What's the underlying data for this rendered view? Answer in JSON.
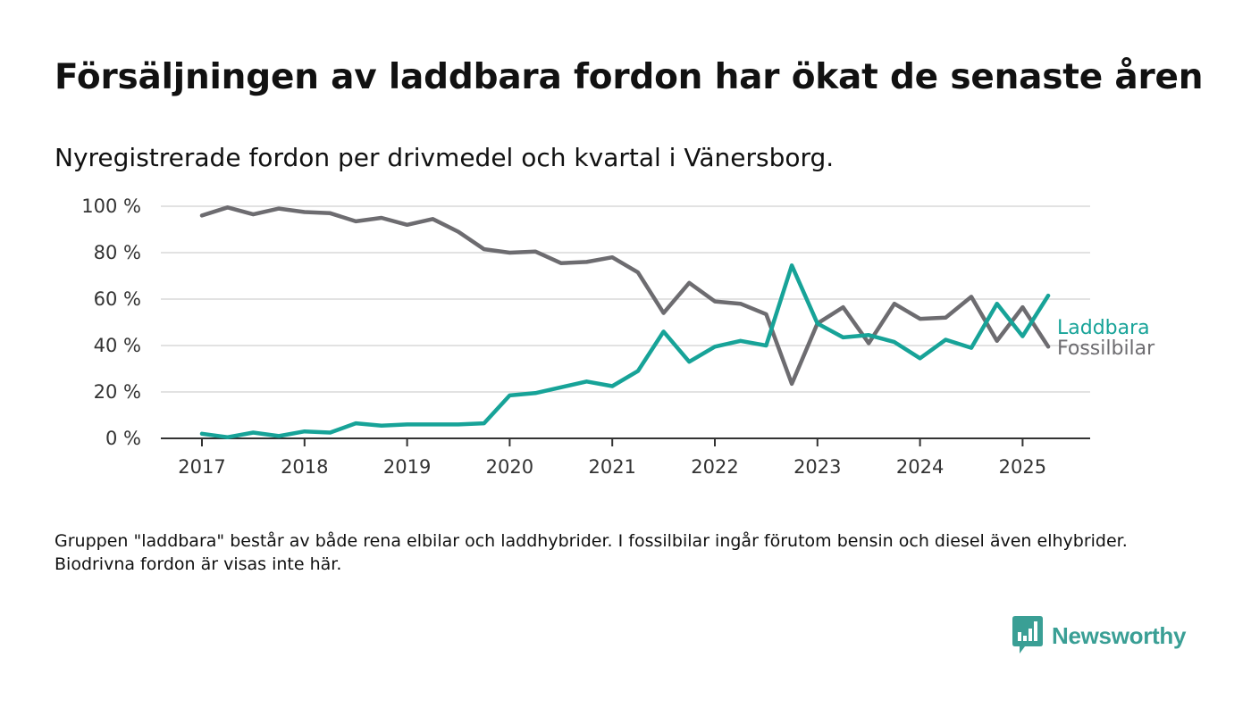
{
  "header": {
    "title": "Försäljningen av laddbara fordon har ökat de senaste åren",
    "subtitle": "Nyregistrerade fordon per drivmedel och kvartal i Vänersborg."
  },
  "footnote": "Gruppen \"laddbara\" består av både rena elbilar och laddhybrider. I fossilbilar ingår förutom bensin och diesel även elhybrider. Biodrivna fordon är visas inte här.",
  "brand": {
    "name": "Newsworthy",
    "icon": "newsworthy-logo-icon",
    "color": "#3a9f95"
  },
  "chart_data": {
    "type": "line",
    "title": "Försäljningen av laddbara fordon har ökat de senaste åren",
    "subtitle": "Nyregistrerade fordon per drivmedel och kvartal i Vänersborg.",
    "xlabel": "",
    "ylabel": "",
    "x": [
      "2017-Q1",
      "2017-Q2",
      "2017-Q3",
      "2017-Q4",
      "2018-Q1",
      "2018-Q2",
      "2018-Q3",
      "2018-Q4",
      "2019-Q1",
      "2019-Q2",
      "2019-Q3",
      "2019-Q4",
      "2020-Q1",
      "2020-Q2",
      "2020-Q3",
      "2020-Q4",
      "2021-Q1",
      "2021-Q2",
      "2021-Q3",
      "2021-Q4",
      "2022-Q1",
      "2022-Q2",
      "2022-Q3",
      "2022-Q4",
      "2023-Q1",
      "2023-Q2",
      "2023-Q3",
      "2023-Q4",
      "2024-Q1",
      "2024-Q2",
      "2024-Q3",
      "2024-Q4",
      "2025-Q1",
      "2025-Q2"
    ],
    "x_tick_labels": [
      "2017",
      "2018",
      "2019",
      "2020",
      "2021",
      "2022",
      "2023",
      "2024",
      "2025"
    ],
    "y_tick_labels": [
      "0 %",
      "20 %",
      "40 %",
      "60 %",
      "80 %",
      "100 %"
    ],
    "y_ticks": [
      0,
      20,
      40,
      60,
      80,
      100
    ],
    "ylim": [
      0,
      100
    ],
    "grid": true,
    "legend": "direct labels at line ends (right)",
    "series": [
      {
        "name": "Fossilbilar",
        "color": "#6d6c70",
        "values": [
          96,
          99.5,
          96.5,
          99,
          97.5,
          97,
          93.5,
          95,
          92,
          94.5,
          89,
          81.5,
          80,
          80.5,
          75.5,
          76,
          78,
          71.5,
          54,
          67,
          59,
          58,
          53.5,
          23.5,
          49.5,
          56.5,
          41,
          58,
          51.5,
          52,
          61,
          42,
          56.5,
          39.5
        ]
      },
      {
        "name": "Laddbara",
        "color": "#17a398",
        "values": [
          2,
          0.5,
          2.5,
          1,
          3,
          2.5,
          6.5,
          5.5,
          6,
          6,
          6,
          6.5,
          18.5,
          19.5,
          22,
          24.5,
          22.5,
          29,
          46,
          33,
          39.5,
          42,
          40,
          74.5,
          49.5,
          43.5,
          44.5,
          41.5,
          34.5,
          42.5,
          39,
          58,
          44,
          61.5
        ]
      }
    ]
  }
}
